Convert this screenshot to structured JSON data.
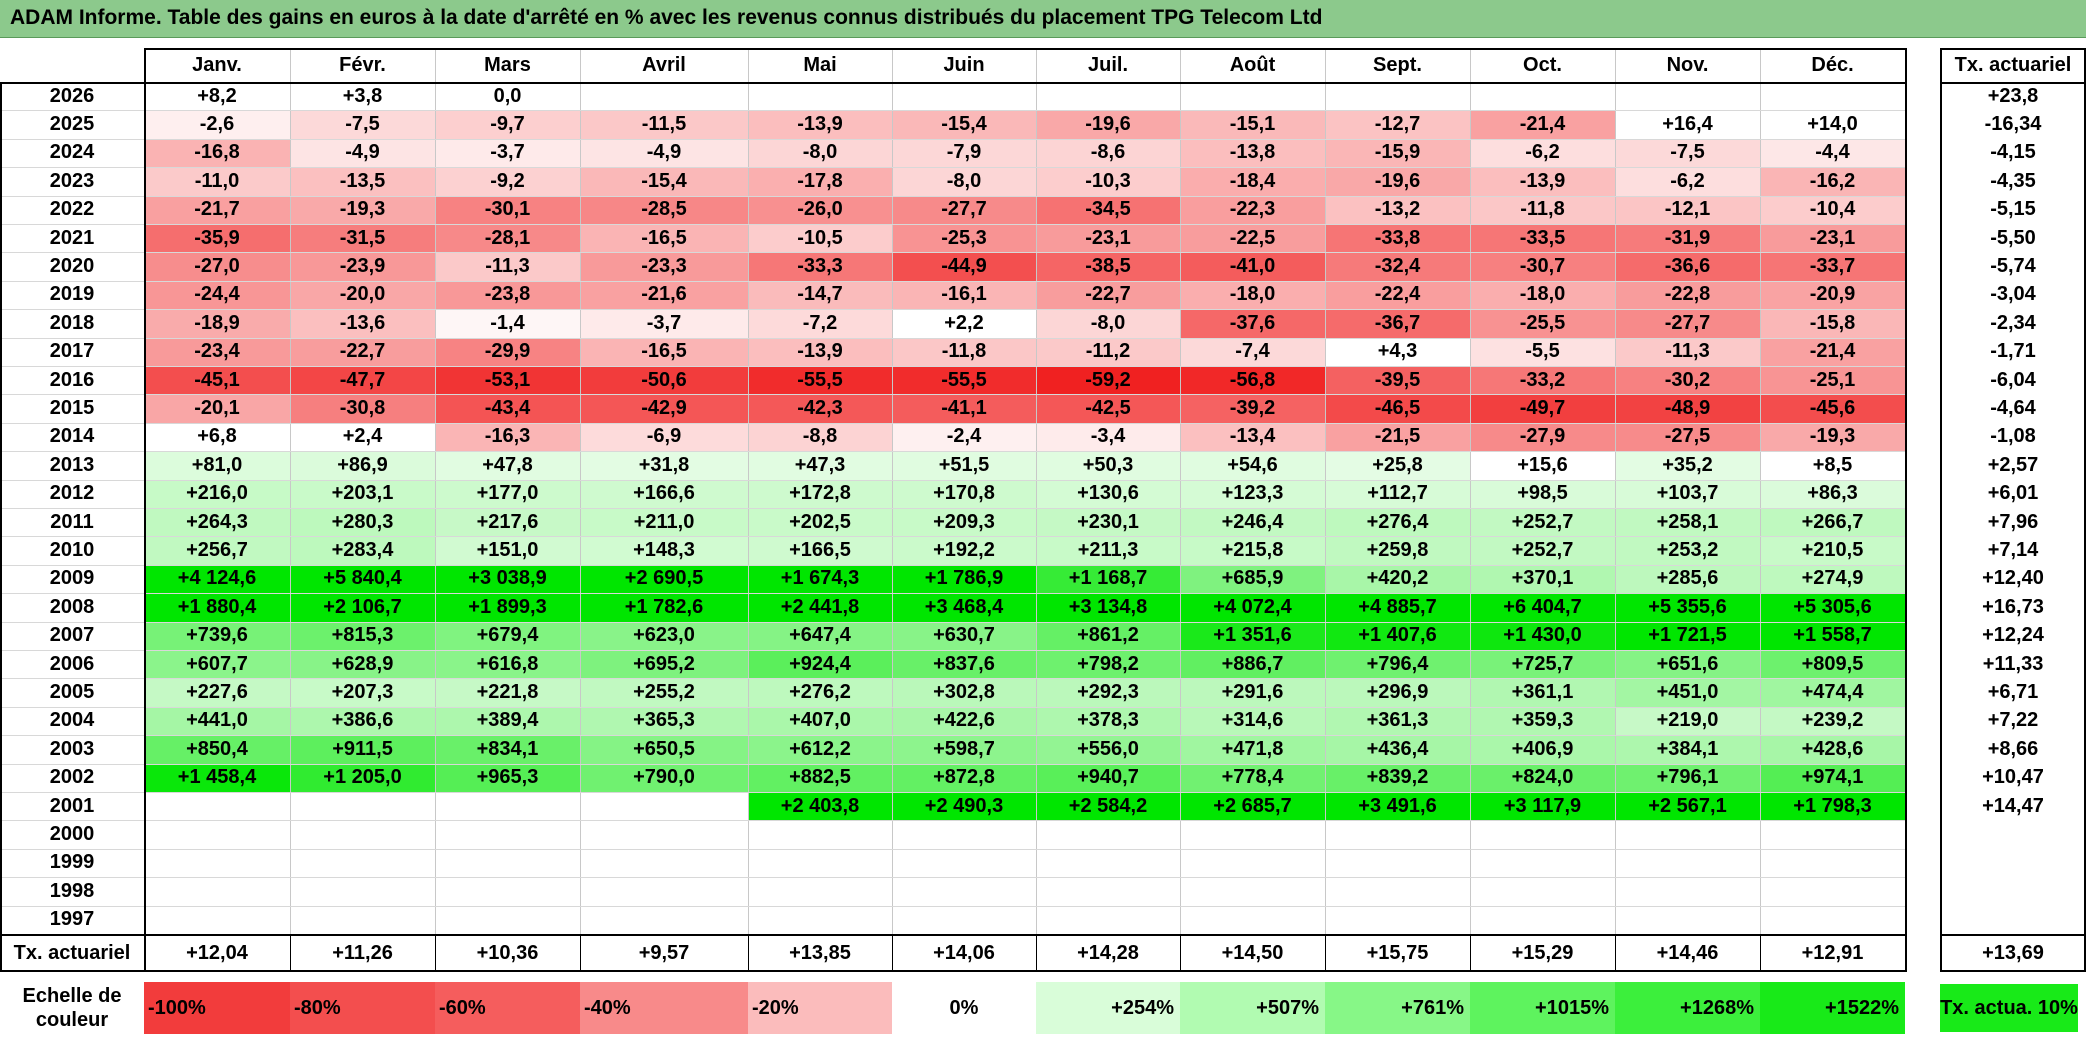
{
  "title": "ADAM Informe. Table des gains en euros à la date d'arrêté en % avec les revenus connus distribués du placement TPG Telecom Ltd",
  "months": [
    "Janv.",
    "Févr.",
    "Mars",
    "Avril",
    "Mai",
    "Juin",
    "Juil.",
    "Août",
    "Sept.",
    "Oct.",
    "Nov.",
    "Déc."
  ],
  "rate_header": "Tx. actuariel",
  "rows": [
    {
      "year": "2026",
      "values": [
        "+8,2",
        "+3,8",
        "0,0",
        "",
        "",
        "",
        "",
        "",
        "",
        "",
        "",
        ""
      ],
      "rate": "+23,8"
    },
    {
      "year": "2025",
      "values": [
        "-2,6",
        "-7,5",
        "-9,7",
        "-11,5",
        "-13,9",
        "-15,4",
        "-19,6",
        "-15,1",
        "-12,7",
        "-21,4",
        "+16,4",
        "+14,0"
      ],
      "rate": "-16,34"
    },
    {
      "year": "2024",
      "values": [
        "-16,8",
        "-4,9",
        "-3,7",
        "-4,9",
        "-8,0",
        "-7,9",
        "-8,6",
        "-13,8",
        "-15,9",
        "-6,2",
        "-7,5",
        "-4,4"
      ],
      "rate": "-4,15"
    },
    {
      "year": "2023",
      "values": [
        "-11,0",
        "-13,5",
        "-9,2",
        "-15,4",
        "-17,8",
        "-8,0",
        "-10,3",
        "-18,4",
        "-19,6",
        "-13,9",
        "-6,2",
        "-16,2"
      ],
      "rate": "-4,35"
    },
    {
      "year": "2022",
      "values": [
        "-21,7",
        "-19,3",
        "-30,1",
        "-28,5",
        "-26,0",
        "-27,7",
        "-34,5",
        "-22,3",
        "-13,2",
        "-11,8",
        "-12,1",
        "-10,4"
      ],
      "rate": "-5,15"
    },
    {
      "year": "2021",
      "values": [
        "-35,9",
        "-31,5",
        "-28,1",
        "-16,5",
        "-10,5",
        "-25,3",
        "-23,1",
        "-22,5",
        "-33,8",
        "-33,5",
        "-31,9",
        "-23,1"
      ],
      "rate": "-5,50"
    },
    {
      "year": "2020",
      "values": [
        "-27,0",
        "-23,9",
        "-11,3",
        "-23,3",
        "-33,3",
        "-44,9",
        "-38,5",
        "-41,0",
        "-32,4",
        "-30,7",
        "-36,6",
        "-33,7"
      ],
      "rate": "-5,74"
    },
    {
      "year": "2019",
      "values": [
        "-24,4",
        "-20,0",
        "-23,8",
        "-21,6",
        "-14,7",
        "-16,1",
        "-22,7",
        "-18,0",
        "-22,4",
        "-18,0",
        "-22,8",
        "-20,9"
      ],
      "rate": "-3,04"
    },
    {
      "year": "2018",
      "values": [
        "-18,9",
        "-13,6",
        "-1,4",
        "-3,7",
        "-7,2",
        "+2,2",
        "-8,0",
        "-37,6",
        "-36,7",
        "-25,5",
        "-27,7",
        "-15,8"
      ],
      "rate": "-2,34"
    },
    {
      "year": "2017",
      "values": [
        "-23,4",
        "-22,7",
        "-29,9",
        "-16,5",
        "-13,9",
        "-11,8",
        "-11,2",
        "-7,4",
        "+4,3",
        "-5,5",
        "-11,3",
        "-21,4"
      ],
      "rate": "-1,71"
    },
    {
      "year": "2016",
      "values": [
        "-45,1",
        "-47,7",
        "-53,1",
        "-50,6",
        "-55,5",
        "-55,5",
        "-59,2",
        "-56,8",
        "-39,5",
        "-33,2",
        "-30,2",
        "-25,1"
      ],
      "rate": "-6,04"
    },
    {
      "year": "2015",
      "values": [
        "-20,1",
        "-30,8",
        "-43,4",
        "-42,9",
        "-42,3",
        "-41,1",
        "-42,5",
        "-39,2",
        "-46,5",
        "-49,7",
        "-48,9",
        "-45,6"
      ],
      "rate": "-4,64"
    },
    {
      "year": "2014",
      "values": [
        "+6,8",
        "+2,4",
        "-16,3",
        "-6,9",
        "-8,8",
        "-2,4",
        "-3,4",
        "-13,4",
        "-21,5",
        "-27,9",
        "-27,5",
        "-19,3"
      ],
      "rate": "-1,08"
    },
    {
      "year": "2013",
      "values": [
        "+81,0",
        "+86,9",
        "+47,8",
        "+31,8",
        "+47,3",
        "+51,5",
        "+50,3",
        "+54,6",
        "+25,8",
        "+15,6",
        "+35,2",
        "+8,5"
      ],
      "rate": "+2,57"
    },
    {
      "year": "2012",
      "values": [
        "+216,0",
        "+203,1",
        "+177,0",
        "+166,6",
        "+172,8",
        "+170,8",
        "+130,6",
        "+123,3",
        "+112,7",
        "+98,5",
        "+103,7",
        "+86,3"
      ],
      "rate": "+6,01"
    },
    {
      "year": "2011",
      "values": [
        "+264,3",
        "+280,3",
        "+217,6",
        "+211,0",
        "+202,5",
        "+209,3",
        "+230,1",
        "+246,4",
        "+276,4",
        "+252,7",
        "+258,1",
        "+266,7"
      ],
      "rate": "+7,96"
    },
    {
      "year": "2010",
      "values": [
        "+256,7",
        "+283,4",
        "+151,0",
        "+148,3",
        "+166,5",
        "+192,2",
        "+211,3",
        "+215,8",
        "+259,8",
        "+252,7",
        "+253,2",
        "+210,5"
      ],
      "rate": "+7,14"
    },
    {
      "year": "2009",
      "values": [
        "+4 124,6",
        "+5 840,4",
        "+3 038,9",
        "+2 690,5",
        "+1 674,3",
        "+1 786,9",
        "+1 168,7",
        "+685,9",
        "+420,2",
        "+370,1",
        "+285,6",
        "+274,9"
      ],
      "rate": "+12,40"
    },
    {
      "year": "2008",
      "values": [
        "+1 880,4",
        "+2 106,7",
        "+1 899,3",
        "+1 782,6",
        "+2 441,8",
        "+3 468,4",
        "+3 134,8",
        "+4 072,4",
        "+4 885,7",
        "+6 404,7",
        "+5 355,6",
        "+5 305,6"
      ],
      "rate": "+16,73"
    },
    {
      "year": "2007",
      "values": [
        "+739,6",
        "+815,3",
        "+679,4",
        "+623,0",
        "+647,4",
        "+630,7",
        "+861,2",
        "+1 351,6",
        "+1 407,6",
        "+1 430,0",
        "+1 721,5",
        "+1 558,7"
      ],
      "rate": "+12,24"
    },
    {
      "year": "2006",
      "values": [
        "+607,7",
        "+628,9",
        "+616,8",
        "+695,2",
        "+924,4",
        "+837,6",
        "+798,2",
        "+886,7",
        "+796,4",
        "+725,7",
        "+651,6",
        "+809,5"
      ],
      "rate": "+11,33"
    },
    {
      "year": "2005",
      "values": [
        "+227,6",
        "+207,3",
        "+221,8",
        "+255,2",
        "+276,2",
        "+302,8",
        "+292,3",
        "+291,6",
        "+296,9",
        "+361,1",
        "+451,0",
        "+474,4"
      ],
      "rate": "+6,71"
    },
    {
      "year": "2004",
      "values": [
        "+441,0",
        "+386,6",
        "+389,4",
        "+365,3",
        "+407,0",
        "+422,6",
        "+378,3",
        "+314,6",
        "+361,3",
        "+359,3",
        "+219,0",
        "+239,2"
      ],
      "rate": "+7,22"
    },
    {
      "year": "2003",
      "values": [
        "+850,4",
        "+911,5",
        "+834,1",
        "+650,5",
        "+612,2",
        "+598,7",
        "+556,0",
        "+471,8",
        "+436,4",
        "+406,9",
        "+384,1",
        "+428,6"
      ],
      "rate": "+8,66"
    },
    {
      "year": "2002",
      "values": [
        "+1 458,4",
        "+1 205,0",
        "+965,3",
        "+790,0",
        "+882,5",
        "+872,8",
        "+940,7",
        "+778,4",
        "+839,2",
        "+824,0",
        "+796,1",
        "+974,1"
      ],
      "rate": "+10,47"
    },
    {
      "year": "2001",
      "values": [
        "",
        "",
        "",
        "",
        "+2 403,8",
        "+2 490,3",
        "+2 584,2",
        "+2 685,7",
        "+3 491,6",
        "+3 117,9",
        "+2 567,1",
        "+1 798,3"
      ],
      "rate": "+14,47"
    },
    {
      "year": "2000",
      "values": [
        "",
        "",
        "",
        "",
        "",
        "",
        "",
        "",
        "",
        "",
        "",
        ""
      ],
      "rate": ""
    },
    {
      "year": "1999",
      "values": [
        "",
        "",
        "",
        "",
        "",
        "",
        "",
        "",
        "",
        "",
        "",
        ""
      ],
      "rate": ""
    },
    {
      "year": "1998",
      "values": [
        "",
        "",
        "",
        "",
        "",
        "",
        "",
        "",
        "",
        "",
        "",
        ""
      ],
      "rate": ""
    },
    {
      "year": "1997",
      "values": [
        "",
        "",
        "",
        "",
        "",
        "",
        "",
        "",
        "",
        "",
        "",
        ""
      ],
      "rate": ""
    }
  ],
  "summary": {
    "label": "Tx. actuariel",
    "values": [
      "+12,04",
      "+11,26",
      "+10,36",
      "+9,57",
      "+13,85",
      "+14,06",
      "+14,28",
      "+14,50",
      "+15,75",
      "+15,29",
      "+14,46",
      "+12,91"
    ],
    "rate": "+13,69"
  },
  "scale": {
    "label": "Echelle de couleur",
    "items": [
      {
        "text": "-100%",
        "color": "#f23c3c",
        "align": "left"
      },
      {
        "text": "-80%",
        "color": "#f34e4e",
        "align": "left"
      },
      {
        "text": "-60%",
        "color": "#f55d5d",
        "align": "left"
      },
      {
        "text": "-40%",
        "color": "#f88a8a",
        "align": "left"
      },
      {
        "text": "-20%",
        "color": "#fbbcbc",
        "align": "left"
      },
      {
        "text": "0%",
        "color": "#ffffff",
        "align": "center"
      },
      {
        "text": "+254%",
        "color": "#d9fdd9",
        "align": "right"
      },
      {
        "text": "+507%",
        "color": "#b1fbb1",
        "align": "right"
      },
      {
        "text": "+761%",
        "color": "#87f787",
        "align": "right"
      },
      {
        "text": "+1015%",
        "color": "#5ef35e",
        "align": "right"
      },
      {
        "text": "+1268%",
        "color": "#3cef3c",
        "align": "right"
      },
      {
        "text": "+1522%",
        "color": "#18ea18",
        "align": "right"
      }
    ],
    "rate_label": "Tx. actua. 10%",
    "rate_color": "#18ea18"
  },
  "colors": {
    "title_bg": "#8cc98c",
    "negative_max": "#f01e1e",
    "positive_max": "#00e600",
    "neutral": "#ffffff"
  }
}
